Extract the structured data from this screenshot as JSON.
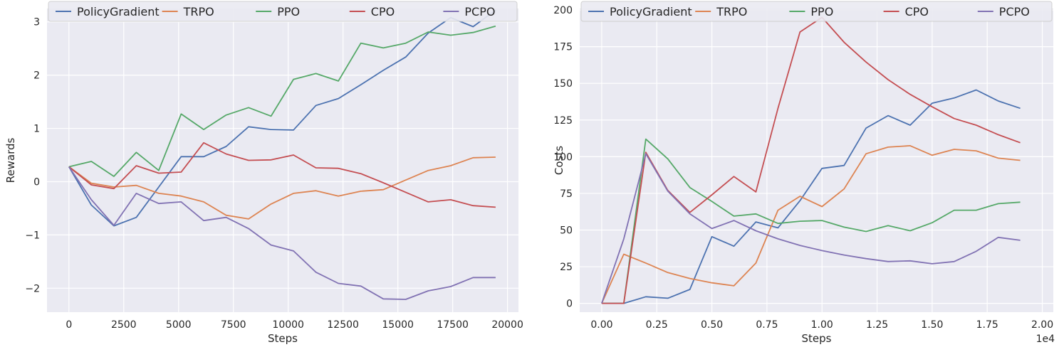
{
  "colors": {
    "PolicyGradient": "#4c72b0",
    "TRPO": "#dd8452",
    "PPO": "#55a868",
    "CPO": "#c44e52",
    "PCPO": "#8172b3",
    "axes_bg": "#eaeaf2",
    "grid": "#ffffff"
  },
  "chart_data": [
    {
      "type": "line",
      "xlabel": "Steps",
      "ylabel": "Rewards",
      "xlim": [
        -1000,
        20500
      ],
      "ylim": [
        -2.45,
        3.25
      ],
      "xticks": [
        0,
        2500,
        5000,
        7500,
        10000,
        12500,
        15000,
        17500,
        20000
      ],
      "xtick_labels": [
        "0",
        "2500",
        "5000",
        "7500",
        "10000",
        "12500",
        "15000",
        "17500",
        "20000"
      ],
      "yticks": [
        -2,
        -1,
        0,
        1,
        2,
        3
      ],
      "ytick_labels": [
        "−2",
        "−1",
        "0",
        "1",
        "2",
        "3"
      ],
      "x_offset_label": "",
      "grid": true,
      "legend": "top",
      "x": [
        0,
        1024,
        2048,
        3072,
        4096,
        5120,
        6144,
        7168,
        8192,
        9216,
        10240,
        11264,
        12288,
        13312,
        14336,
        15360,
        16384,
        17408,
        18432,
        19456
      ],
      "series": [
        {
          "name": "PolicyGradient",
          "values": [
            0.28,
            -0.44,
            -0.83,
            -0.67,
            -0.1,
            0.47,
            0.47,
            0.66,
            1.03,
            0.98,
            0.97,
            1.43,
            1.56,
            1.82,
            2.09,
            2.34,
            2.79,
            3.08,
            2.91,
            3.22
          ]
        },
        {
          "name": "TRPO",
          "values": [
            0.28,
            -0.03,
            -0.1,
            -0.07,
            -0.22,
            -0.27,
            -0.38,
            -0.63,
            -0.7,
            -0.42,
            -0.22,
            -0.17,
            -0.27,
            -0.18,
            -0.15,
            0.03,
            0.21,
            0.3,
            0.45,
            0.46
          ]
        },
        {
          "name": "PPO",
          "values": [
            0.28,
            0.38,
            0.1,
            0.55,
            0.21,
            1.27,
            0.98,
            1.25,
            1.39,
            1.23,
            1.92,
            2.03,
            1.89,
            2.6,
            2.51,
            2.6,
            2.81,
            2.75,
            2.8,
            2.92
          ]
        },
        {
          "name": "CPO",
          "values": [
            0.28,
            -0.06,
            -0.13,
            0.3,
            0.16,
            0.18,
            0.73,
            0.52,
            0.4,
            0.41,
            0.5,
            0.26,
            0.25,
            0.15,
            -0.02,
            -0.2,
            -0.38,
            -0.34,
            -0.45,
            -0.48
          ]
        },
        {
          "name": "PCPO",
          "values": [
            0.28,
            -0.34,
            -0.82,
            -0.22,
            -0.41,
            -0.38,
            -0.73,
            -0.67,
            -0.88,
            -1.19,
            -1.3,
            -1.7,
            -1.91,
            -1.96,
            -2.2,
            -2.21,
            -2.05,
            -1.97,
            -1.8,
            -1.8
          ]
        }
      ]
    },
    {
      "type": "line",
      "xlabel": "Steps",
      "ylabel": "Costs",
      "xlim": [
        -0.1,
        2.05
      ],
      "ylim": [
        -6,
        201
      ],
      "xticks": [
        0,
        0.25,
        0.5,
        0.75,
        1.0,
        1.25,
        1.5,
        1.75,
        2.0
      ],
      "xtick_labels": [
        "0.00",
        "0.25",
        "0.50",
        "0.75",
        "1.00",
        "1.25",
        "1.50",
        "1.75",
        "2.00"
      ],
      "yticks": [
        0,
        25,
        50,
        75,
        100,
        125,
        150,
        175,
        200
      ],
      "ytick_labels": [
        "0",
        "25",
        "50",
        "75",
        "100",
        "125",
        "150",
        "175",
        "200"
      ],
      "x_offset_label": "1e4",
      "grid": true,
      "legend": "top",
      "x": [
        0,
        0.1,
        0.2,
        0.3,
        0.4,
        0.5,
        0.6,
        0.7,
        0.8,
        0.9,
        1.0,
        1.1,
        1.2,
        1.3,
        1.4,
        1.5,
        1.6,
        1.7,
        1.8,
        1.9
      ],
      "series": [
        {
          "name": "PolicyGradient",
          "values": [
            0,
            0,
            4.5,
            3.5,
            9.5,
            45.5,
            39,
            55.5,
            51.5,
            70,
            92,
            94,
            119.5,
            128,
            121.5,
            136.5,
            140,
            145.5,
            138,
            133
          ]
        },
        {
          "name": "TRPO",
          "values": [
            0,
            33.5,
            27.5,
            21,
            17,
            14,
            12,
            27.5,
            63.5,
            73,
            66,
            78,
            102,
            106.5,
            107.5,
            101,
            105,
            104,
            99,
            97.5
          ]
        },
        {
          "name": "PPO",
          "values": [
            0,
            0,
            112,
            98.5,
            79,
            69.5,
            59.5,
            61,
            54.5,
            56,
            56.5,
            52,
            49,
            53,
            49.5,
            55,
            63.5,
            63.5,
            68,
            69
          ]
        },
        {
          "name": "CPO",
          "values": [
            0,
            0,
            103,
            77,
            62,
            74,
            86.5,
            76,
            133,
            185,
            195,
            178,
            164.5,
            152.5,
            142.5,
            134,
            126,
            121.5,
            115,
            109.5
          ]
        },
        {
          "name": "PCPO",
          "values": [
            0,
            44,
            102,
            76.5,
            61,
            51,
            56.5,
            49.5,
            44,
            39.5,
            36,
            33,
            30.5,
            28.5,
            29,
            27,
            28.5,
            35.5,
            45,
            43
          ]
        }
      ]
    }
  ]
}
